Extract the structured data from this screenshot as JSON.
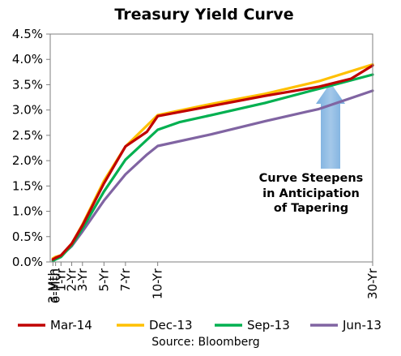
{
  "chart_data": {
    "type": "line",
    "title": "Treasury Yield Curve",
    "source": "Source: Bloomberg",
    "annotation": [
      "Curve Steepens",
      "in Anticipation",
      "of Tapering"
    ],
    "y_ticks": [
      "0.0%",
      "0.5%",
      "1.0%",
      "1.5%",
      "2.0%",
      "2.5%",
      "3.0%",
      "3.5%",
      "4.0%",
      "4.5%"
    ],
    "ylim": [
      0,
      4.5
    ],
    "xlim": [
      0,
      30
    ],
    "x_ticks": [
      {
        "label": "3-Mth",
        "value": 0.25
      },
      {
        "label": "6-Mth",
        "value": 0.5
      },
      {
        "label": "1-Yr",
        "value": 1
      },
      {
        "label": "2-Yr",
        "value": 2
      },
      {
        "label": "3-Yr",
        "value": 3
      },
      {
        "label": "5-Yr",
        "value": 5
      },
      {
        "label": "7-Yr",
        "value": 7
      },
      {
        "label": "10-Yr",
        "value": 10
      },
      {
        "label": "30-Yr",
        "value": 30
      }
    ],
    "series": [
      {
        "name": "Mar-14",
        "color": "#c00000",
        "x": [
          0.25,
          0.5,
          1,
          2,
          3,
          5,
          7,
          9,
          10,
          15,
          20,
          25,
          28,
          30
        ],
        "y": [
          0.05,
          0.08,
          0.13,
          0.36,
          0.72,
          1.55,
          2.28,
          2.57,
          2.88,
          3.08,
          3.28,
          3.46,
          3.62,
          3.88
        ]
      },
      {
        "name": "Dec-13",
        "color": "#ffc000",
        "x": [
          0.25,
          0.5,
          1,
          2,
          3,
          5,
          7,
          10,
          15,
          20,
          25,
          30
        ],
        "y": [
          0.07,
          0.1,
          0.13,
          0.36,
          0.74,
          1.6,
          2.28,
          2.9,
          3.12,
          3.32,
          3.57,
          3.9
        ]
      },
      {
        "name": "Sep-13",
        "color": "#00b050",
        "x": [
          0.25,
          0.5,
          1,
          2,
          3,
          5,
          7,
          10,
          12,
          15,
          20,
          25,
          30
        ],
        "y": [
          0.02,
          0.05,
          0.1,
          0.33,
          0.66,
          1.39,
          2.02,
          2.61,
          2.76,
          2.9,
          3.14,
          3.42,
          3.7
        ]
      },
      {
        "name": "Jun-13",
        "color": "#8064a2",
        "x": [
          0.25,
          0.5,
          1,
          2,
          3,
          5,
          7,
          9,
          10,
          15,
          20,
          25,
          30
        ],
        "y": [
          0.03,
          0.07,
          0.12,
          0.31,
          0.6,
          1.21,
          1.73,
          2.12,
          2.29,
          2.52,
          2.78,
          3.02,
          3.38
        ]
      }
    ],
    "grid": false,
    "legend_position": "bottom"
  }
}
